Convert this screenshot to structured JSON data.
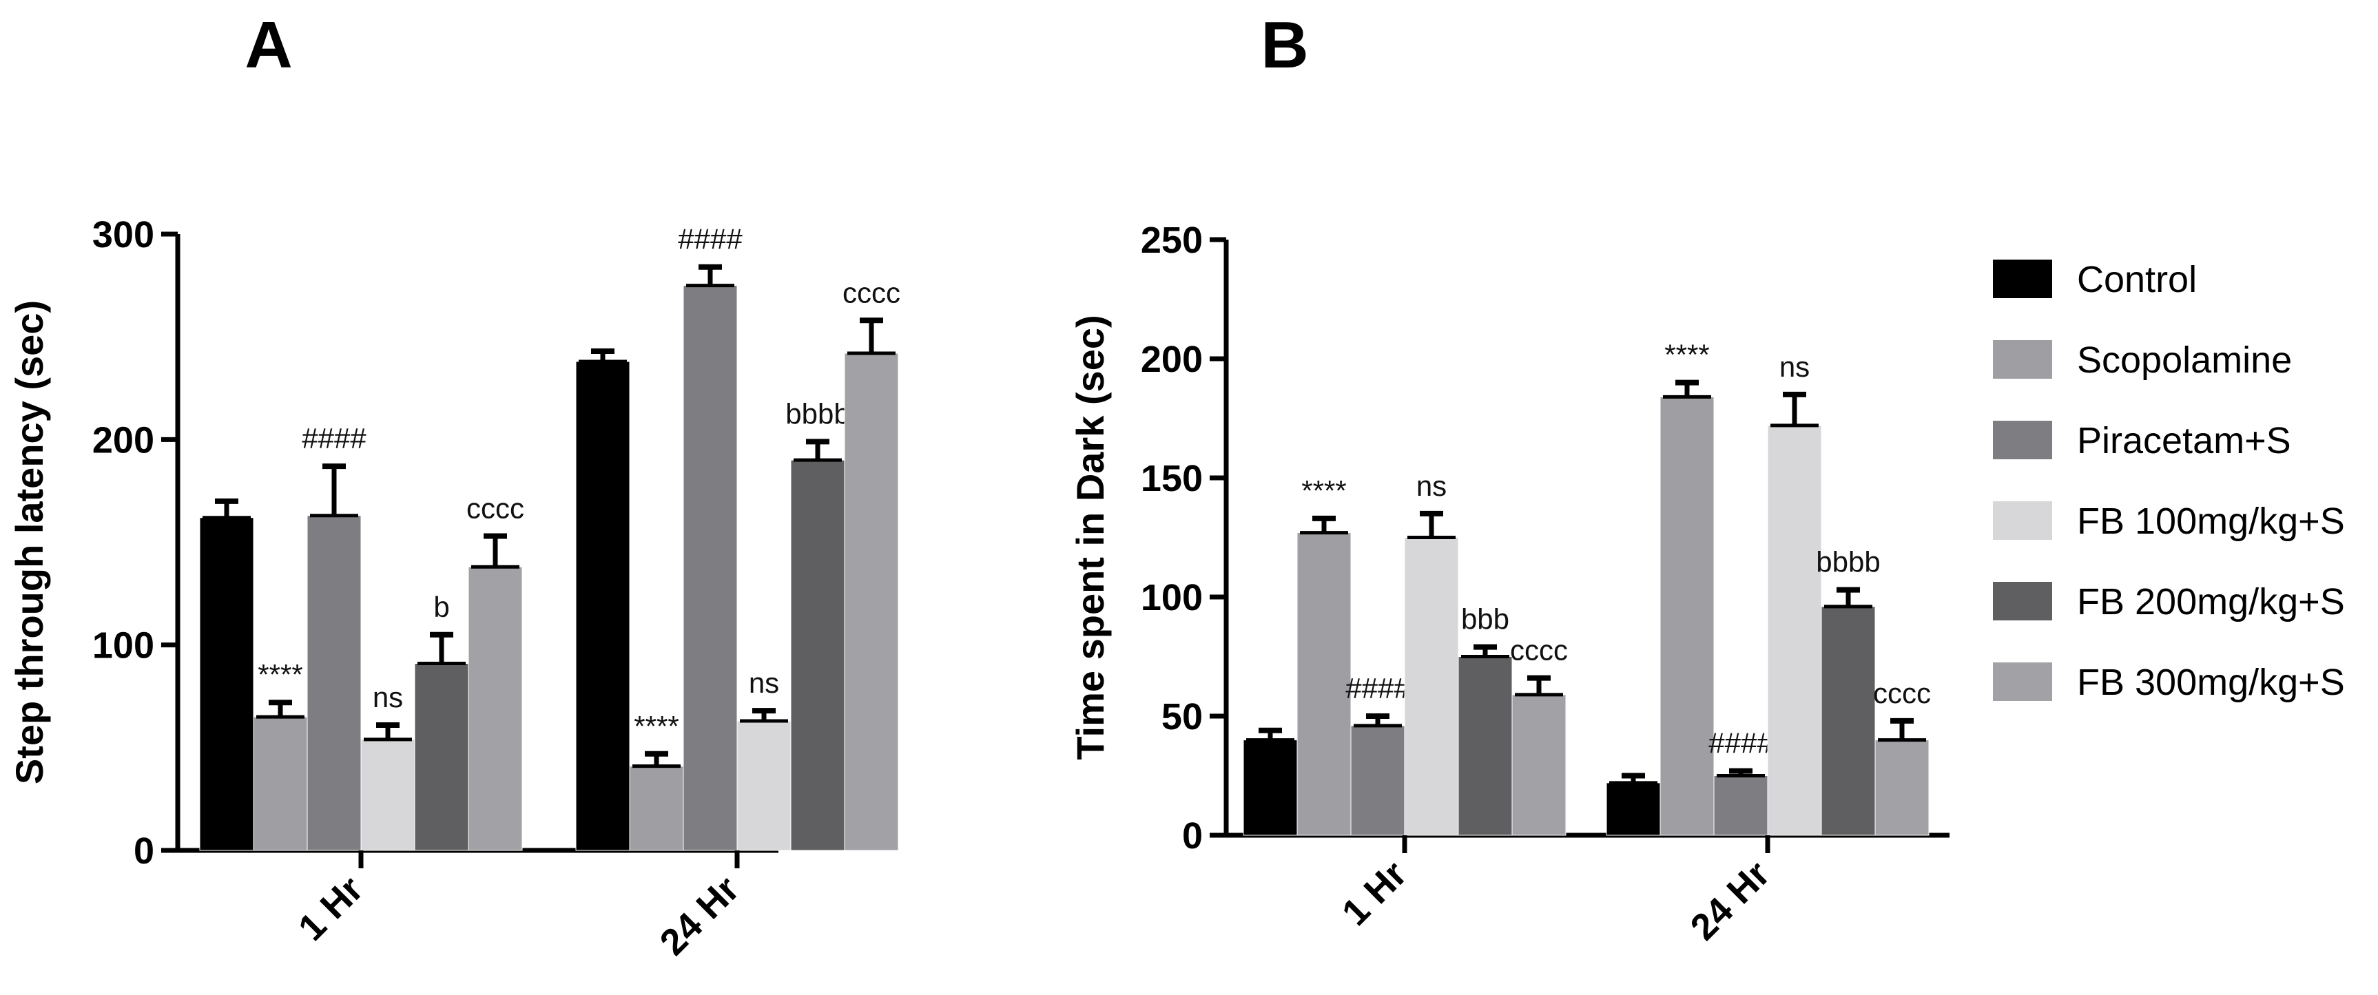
{
  "chart_data": [
    {
      "panel": "A",
      "type": "bar",
      "title": "",
      "xlabel": "",
      "ylabel": "Step through latency (sec)",
      "ylim": [
        0,
        300
      ],
      "yticks": [
        0,
        100,
        200,
        300
      ],
      "categories": [
        "1 Hr",
        "24 Hr"
      ],
      "series": [
        {
          "name": "Control",
          "color": "#000000",
          "values": [
            162,
            238
          ],
          "errors": [
            8,
            5
          ],
          "annotations": [
            "",
            ""
          ]
        },
        {
          "name": "Scopolamine",
          "color": "#9e9ea3",
          "values": [
            65,
            41
          ],
          "errors": [
            7,
            6
          ],
          "annotations": [
            "****",
            "****"
          ]
        },
        {
          "name": "Piracetam+S",
          "color": "#7e7e82",
          "values": [
            163,
            275
          ],
          "errors": [
            24,
            9
          ],
          "annotations": [
            "####",
            "####"
          ]
        },
        {
          "name": "FB 100mg/kg+S",
          "color": "#d7d7d9",
          "values": [
            54,
            63
          ],
          "errors": [
            7,
            5
          ],
          "annotations": [
            "ns",
            "ns"
          ]
        },
        {
          "name": "FB 200mg/kg+S",
          "color": "#5f5f62",
          "values": [
            91,
            190
          ],
          "errors": [
            14,
            9
          ],
          "annotations": [
            "b",
            "bbbb"
          ]
        },
        {
          "name": "FB 300mg/kg+S",
          "color": "#a2a2a6",
          "values": [
            138,
            242
          ],
          "errors": [
            15,
            16
          ],
          "annotations": [
            "cccc",
            "cccc"
          ]
        }
      ]
    },
    {
      "panel": "B",
      "type": "bar",
      "title": "",
      "xlabel": "",
      "ylabel": "Time spent in Dark (sec)",
      "ylim": [
        0,
        250
      ],
      "yticks": [
        0,
        50,
        100,
        150,
        200,
        250
      ],
      "categories": [
        "1 Hr",
        "24 Hr"
      ],
      "series": [
        {
          "name": "Control",
          "color": "#000000",
          "values": [
            40,
            22
          ],
          "errors": [
            4,
            3
          ],
          "annotations": [
            "",
            ""
          ]
        },
        {
          "name": "Scopolamine",
          "color": "#9e9ea3",
          "values": [
            127,
            184
          ],
          "errors": [
            6,
            6
          ],
          "annotations": [
            "****",
            "****"
          ]
        },
        {
          "name": "Piracetam+S",
          "color": "#7e7e82",
          "values": [
            46,
            25
          ],
          "errors": [
            4,
            2
          ],
          "annotations": [
            "####",
            "####"
          ]
        },
        {
          "name": "FB 100mg/kg+S",
          "color": "#d7d7d9",
          "values": [
            125,
            172
          ],
          "errors": [
            10,
            13
          ],
          "annotations": [
            "ns",
            "ns"
          ]
        },
        {
          "name": "FB 200mg/kg+S",
          "color": "#5f5f62",
          "values": [
            75,
            96
          ],
          "errors": [
            4,
            7
          ],
          "annotations": [
            "bbb",
            "bbbb"
          ]
        },
        {
          "name": "FB 300mg/kg+S",
          "color": "#a2a2a6",
          "values": [
            59,
            40
          ],
          "errors": [
            7,
            8
          ],
          "annotations": [
            "cccc",
            "cccc"
          ]
        }
      ]
    }
  ],
  "legend": {
    "position": "right",
    "items": [
      {
        "label": "Control",
        "color": "#000000"
      },
      {
        "label": "Scopolamine",
        "color": "#9e9ea3"
      },
      {
        "label": "Piracetam+S",
        "color": "#7e7e82"
      },
      {
        "label": "FB 100mg/kg+S",
        "color": "#d7d7d9"
      },
      {
        "label": "FB 200mg/kg+S",
        "color": "#5f5f62"
      },
      {
        "label": "FB 300mg/kg+S",
        "color": "#a2a2a6"
      }
    ]
  }
}
